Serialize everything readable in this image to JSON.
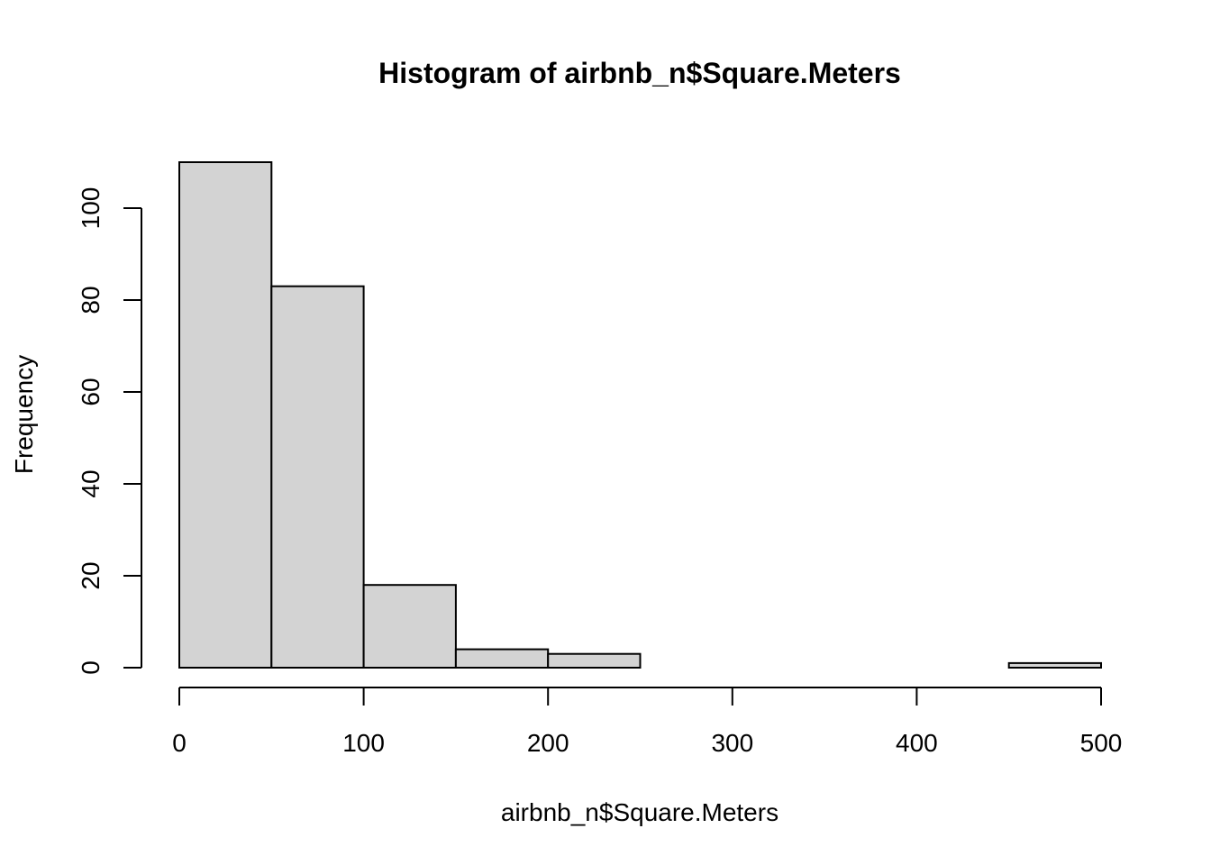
{
  "chart_data": {
    "type": "bar",
    "title": "Histogram of airbnb_n$Square.Meters",
    "xlabel": "airbnb_n$Square.Meters",
    "ylabel": "Frequency",
    "bins": [
      {
        "from": 0,
        "to": 50,
        "count": 110
      },
      {
        "from": 50,
        "to": 100,
        "count": 83
      },
      {
        "from": 100,
        "to": 150,
        "count": 18
      },
      {
        "from": 150,
        "to": 200,
        "count": 4
      },
      {
        "from": 200,
        "to": 250,
        "count": 3
      },
      {
        "from": 250,
        "to": 300,
        "count": 0
      },
      {
        "from": 300,
        "to": 350,
        "count": 0
      },
      {
        "from": 350,
        "to": 400,
        "count": 0
      },
      {
        "from": 400,
        "to": 450,
        "count": 0
      },
      {
        "from": 450,
        "to": 500,
        "count": 1
      }
    ],
    "xlim": [
      0,
      500
    ],
    "ylim": [
      0,
      110
    ],
    "x_ticks": [
      0,
      100,
      200,
      300,
      400,
      500
    ],
    "y_ticks": [
      0,
      20,
      40,
      60,
      80,
      100
    ],
    "bar_fill": "#d3d3d3",
    "bar_stroke": "#000000",
    "grid": false,
    "legend": "none"
  }
}
